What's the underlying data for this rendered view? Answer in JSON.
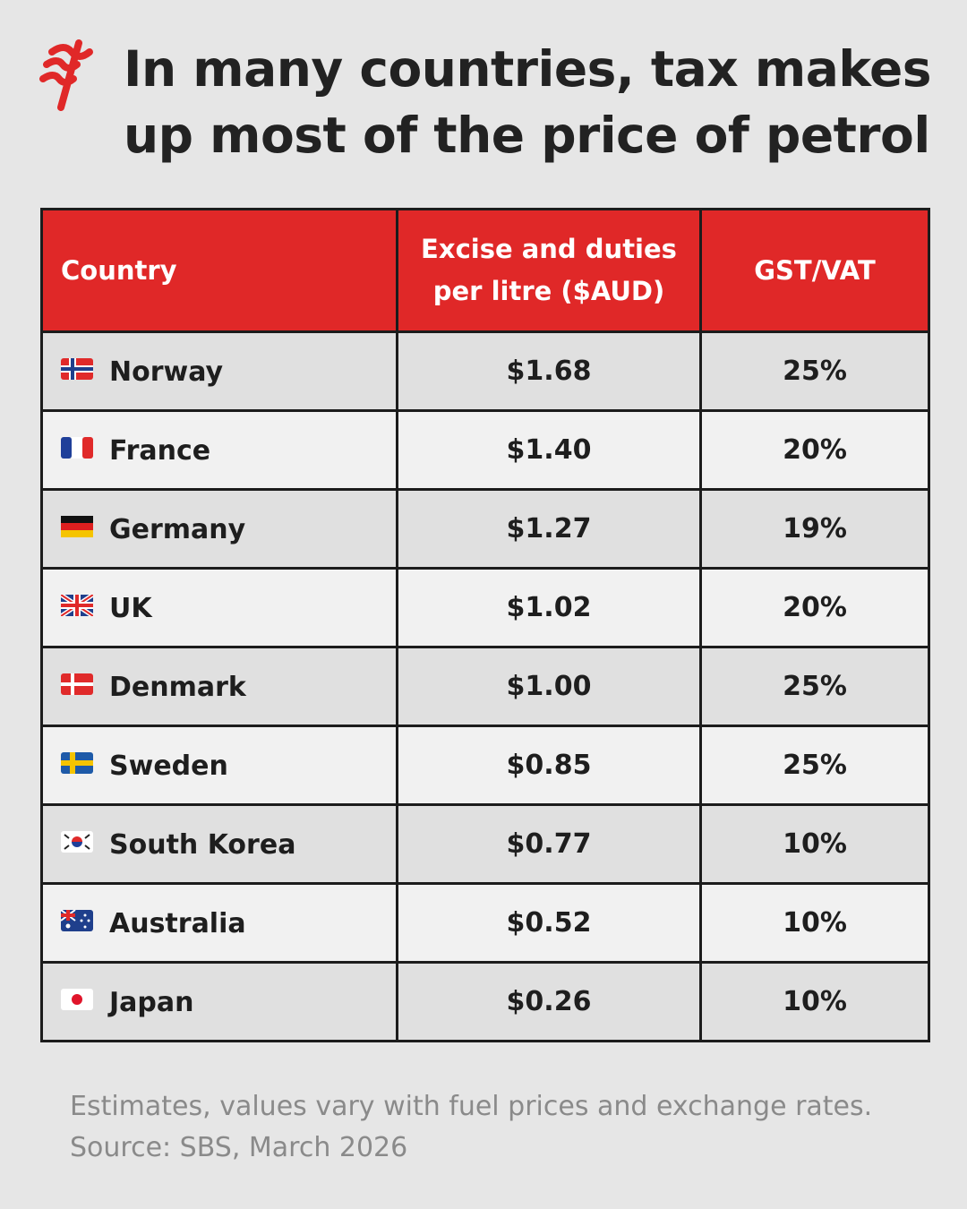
{
  "title_lines": [
    "In many countries, tax makes",
    "up most of the price of petrol"
  ],
  "table": {
    "header": [
      "Country",
      "Excise and duties per litre ($AUD)",
      "GST/VAT"
    ],
    "rows": [
      [
        "Norway",
        "$1.68",
        "25%"
      ],
      [
        "France",
        "$1.40",
        "20%"
      ],
      [
        "Germany",
        "$1.27",
        "19%"
      ],
      [
        "UK",
        "$1.02",
        "20%"
      ],
      [
        "Denmark",
        "$1.00",
        "25%"
      ],
      [
        "Sweden",
        "$0.85",
        "25%"
      ],
      [
        "South Korea",
        "$0.77",
        "10%"
      ],
      [
        "Australia",
        "$0.52",
        "10%"
      ],
      [
        "Japan",
        "$0.26",
        "10%"
      ]
    ]
  },
  "note": "Estimates, values vary with fuel prices and exchange rates.",
  "source": "Source: SBS, March 2026"
}
